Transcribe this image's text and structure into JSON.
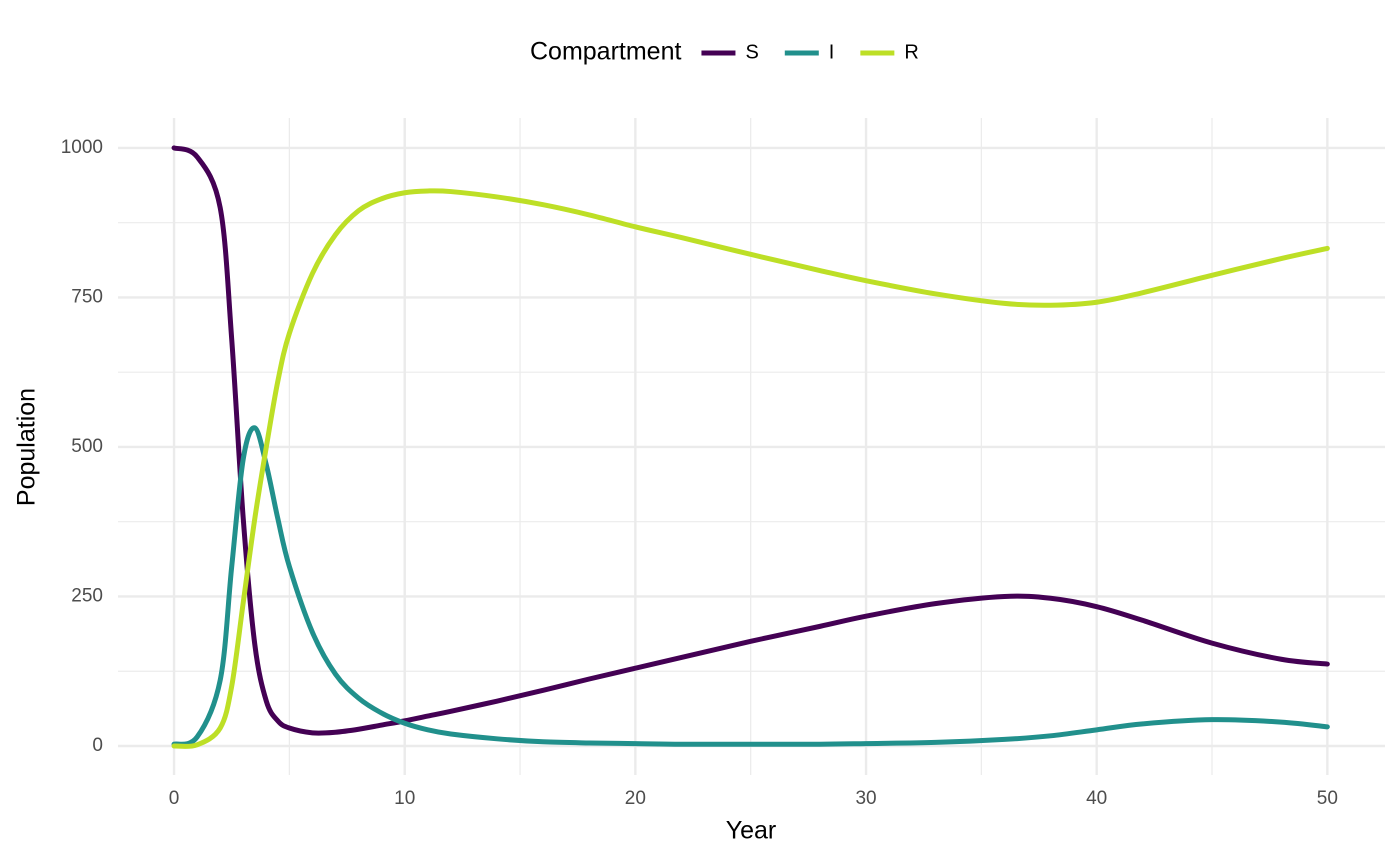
{
  "chart_data": {
    "type": "line",
    "legend_title": "Compartment",
    "x_label": "Year",
    "y_label": "Population",
    "x": [
      0,
      1,
      2,
      2.5,
      3,
      3.5,
      4,
      4.5,
      5,
      6,
      7,
      8,
      9,
      10,
      11,
      12,
      14,
      16,
      18,
      20,
      22,
      25,
      28,
      30,
      33,
      36,
      38,
      40,
      42,
      45,
      48,
      50
    ],
    "series": [
      {
        "name": "S",
        "color": "#440154",
        "values": [
          1000,
          985,
          900,
          680,
          380,
          170,
          75,
          42,
          30,
          22,
          23,
          28,
          35,
          42,
          50,
          58,
          75,
          93,
          112,
          130,
          148,
          175,
          200,
          217,
          238,
          250,
          247,
          233,
          210,
          172,
          145,
          137
        ]
      },
      {
        "name": "I",
        "color": "#21908c",
        "values": [
          3,
          15,
          110,
          300,
          480,
          532,
          470,
          380,
          300,
          190,
          120,
          80,
          55,
          38,
          27,
          20,
          12,
          7,
          5,
          4,
          3,
          3,
          3,
          4,
          6,
          11,
          17,
          27,
          37,
          44,
          40,
          32
        ]
      },
      {
        "name": "R",
        "color": "#bddf26",
        "values": [
          0,
          2,
          30,
          100,
          240,
          380,
          500,
          610,
          690,
          790,
          855,
          895,
          915,
          925,
          928,
          927,
          918,
          905,
          888,
          868,
          850,
          822,
          795,
          778,
          756,
          740,
          737,
          742,
          758,
          787,
          815,
          832
        ]
      }
    ],
    "xlim": [
      -2.43,
      52.5
    ],
    "ylim": [
      -48.5,
      1050
    ],
    "xticks": [
      0,
      10,
      20,
      30,
      40,
      50
    ],
    "yticks": [
      0,
      250,
      500,
      750,
      1000
    ],
    "xminorticks": [
      5,
      15,
      25,
      35,
      45
    ],
    "yminorticks": [
      125,
      375,
      625,
      875
    ],
    "grid": true,
    "legend_position": "top"
  }
}
